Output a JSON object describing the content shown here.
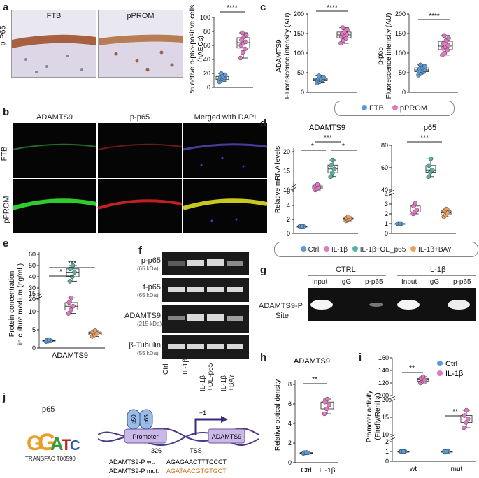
{
  "panels": {
    "a": "a",
    "b": "b",
    "c": "c",
    "d": "d",
    "e": "e",
    "f": "f",
    "g": "g",
    "h": "h",
    "i": "i",
    "j": "j"
  },
  "colors": {
    "ctrl": "#5b9bd5",
    "treat": "#e377c2",
    "oe": "#52b3a0",
    "bay": "#f0a060",
    "ink": "#222222"
  },
  "panel_a": {
    "row_label": "p-P65",
    "img_labels": [
      "FTB",
      "pPROM"
    ],
    "ylabel_1": "% active p-p65-positive cells",
    "ylabel_2": "(hAECs)",
    "sig": "****",
    "ylim": [
      0,
      100
    ],
    "ticks": [
      "0",
      "20",
      "40",
      "60",
      "80",
      "100"
    ]
  },
  "panel_b": {
    "cols": [
      "ADAMTS9",
      "p-p65",
      "Merged with DAPI"
    ],
    "rows": [
      "FTB",
      "pPROM"
    ]
  },
  "panel_c": {
    "left_ylabel_1": "ADAMTS9",
    "left_ylabel_2": "Fluorescence intensity (AU)",
    "right_ylabel_1": "p-p65",
    "right_ylabel_2": "Fluorescence intensity (AU)",
    "sig": "****",
    "ticks": [
      "0",
      "50",
      "100",
      "150",
      "200"
    ],
    "legend": [
      "FTB",
      "pPROM"
    ]
  },
  "panel_d": {
    "title_left": "ADAMTS9",
    "title_right": "p65",
    "ylabel": "Relative mRNA levels",
    "sig_1": "*",
    "sig_2": "***",
    "sig_3": "*",
    "sig_4": "***",
    "ticks_left_low": [
      "0",
      "2",
      "4",
      "6"
    ],
    "ticks_left_high": [
      "10",
      "15",
      "20"
    ],
    "ticks_right_low": [
      "0",
      "1",
      "2",
      "3",
      "4"
    ],
    "ticks_right_high": [
      "40",
      "60",
      "80"
    ],
    "legend": [
      "Ctrl",
      "IL-1β",
      "IL-1β+OE_p65",
      "IL-1β+BAY"
    ]
  },
  "panel_e": {
    "ylabel_1": "Protein concentration",
    "ylabel_2": "in culture medium (ng/mL)",
    "xlabel": "ADAMTS9",
    "sig_1": "*",
    "sig_2": "***",
    "ticks_high": [
      "20",
      "30",
      "40",
      "50",
      "60"
    ],
    "ticks_low": [
      "0",
      "5",
      "10",
      "15"
    ]
  },
  "panel_f": {
    "bands": [
      {
        "name": "p-p65",
        "kda": "(65 kDa)"
      },
      {
        "name": "t-p65",
        "kda": "(65 kDa)"
      },
      {
        "name": "ADAMTS9",
        "kda": "(215 kDa)"
      },
      {
        "name": "β-Tubulin",
        "kda": "(55 kDa)"
      }
    ],
    "lanes": [
      "Ctrl",
      "IL-1β",
      "IL-1β +OE-p65",
      "IL-1β +BAY"
    ]
  },
  "panel_g": {
    "groups": [
      "CTRL",
      "IL-1β"
    ],
    "lanes": [
      "Input",
      "IgG",
      "p-p65",
      "Input",
      "IgG",
      "p-p65"
    ],
    "site_1": "ADAMTS9-P",
    "site_2": "Site"
  },
  "panel_h": {
    "title": "ADAMTS9",
    "ylabel": "Relative optical density",
    "sig": "**",
    "ticks": [
      "0",
      "2",
      "4",
      "6",
      "8"
    ],
    "cats": [
      "Ctrl",
      "IL-1β"
    ]
  },
  "panel_i": {
    "ylabel_1": "Promoter activity",
    "ylabel_2": "(Firefly/Renilla)",
    "sig_1": "**",
    "sig_2": "**",
    "ticks_high": [
      "100",
      "120",
      "140",
      "160"
    ],
    "ticks_mid": [
      "10",
      "15",
      "20"
    ],
    "ticks_low": [
      "0",
      "1",
      "2"
    ],
    "cats": [
      "wt",
      "mut"
    ],
    "legend": [
      "Ctrl",
      "IL-1β"
    ]
  },
  "panel_j": {
    "motif_title": "p65",
    "motif_src": "TRANSFAC T00590",
    "p50": "p50",
    "p65": "p65",
    "promoter": "Promoter",
    "gene": "ADAMTS9",
    "plus1": "+1",
    "pos": "-326",
    "tss": "TSS",
    "wt_label": "ADAMTS9-P wt:",
    "wt_seq": "AGAGAACTTTCCCT",
    "mut_label": "ADAMTS9-P mut:",
    "mut_seq": "AGATAACGTGTGCT"
  },
  "chart_data": [
    {
      "type": "box",
      "panel": "a",
      "categories": [
        "FTB",
        "pPROM"
      ],
      "values": [
        [
          8,
          10,
          11,
          12,
          13,
          14,
          15,
          16,
          18,
          20
        ],
        [
          42,
          50,
          55,
          60,
          63,
          65,
          68,
          72,
          75,
          78
        ]
      ],
      "ylabel": "% active p-p65-positive cells (hAECs)",
      "ylim": [
        0,
        100
      ]
    },
    {
      "type": "box",
      "panel": "c-left",
      "categories": [
        "FTB",
        "pPROM"
      ],
      "values": [
        [
          24,
          27,
          29,
          31,
          32,
          33,
          34,
          36,
          38,
          42
        ],
        [
          125,
          132,
          138,
          142,
          145,
          148,
          150,
          155,
          160,
          165
        ]
      ],
      "ylabel": "ADAMTS9 Fluorescence intensity (AU)",
      "ylim": [
        0,
        200
      ]
    },
    {
      "type": "box",
      "panel": "c-right",
      "categories": [
        "FTB",
        "pPROM"
      ],
      "values": [
        [
          44,
          48,
          52,
          54,
          56,
          58,
          60,
          63,
          66,
          70
        ],
        [
          95,
          100,
          108,
          112,
          116,
          120,
          125,
          132,
          138,
          145
        ]
      ],
      "ylabel": "p-p65 Fluorescence intensity (AU)",
      "ylim": [
        0,
        200
      ]
    },
    {
      "type": "box",
      "panel": "d-left",
      "categories": [
        "Ctrl",
        "IL-1β",
        "IL-1β+OE_p65",
        "IL-1β+BAY"
      ],
      "values": [
        [
          1,
          1,
          1,
          1,
          1
        ],
        [
          6.2,
          6.4,
          6.6,
          6.8,
          7.0
        ],
        [
          13.5,
          14.5,
          15.5,
          16.5,
          17.8
        ],
        [
          1.8,
          2.0,
          2.1,
          2.2,
          2.4
        ]
      ],
      "ylabel": "Relative mRNA levels"
    },
    {
      "type": "box",
      "panel": "d-right",
      "categories": [
        "Ctrl",
        "IL-1β",
        "IL-1β+OE_p65",
        "IL-1β+BAY"
      ],
      "values": [
        [
          1,
          1,
          1,
          1,
          1
        ],
        [
          2.0,
          2.2,
          2.4,
          2.8,
          3.1
        ],
        [
          52,
          56,
          58,
          62,
          68
        ],
        [
          1.7,
          1.9,
          2.1,
          2.3,
          2.5
        ]
      ]
    },
    {
      "type": "box",
      "panel": "e",
      "categories": [
        "Ctrl",
        "IL-1β",
        "IL-1β+BAY"
      ],
      "values": [
        [
          1.8,
          1.9,
          2.0,
          2.1,
          2.3
        ],
        [
          9.5,
          10.5,
          11.5,
          12.5,
          13.8
        ],
        [
          3.2,
          3.6,
          4.0,
          4.4,
          4.8
        ]
      ],
      "ylabel": "Protein concentration in culture medium (ng/mL)"
    },
    {
      "type": "box",
      "panel": "h",
      "categories": [
        "Ctrl",
        "IL-1β"
      ],
      "values": [
        [
          0.95,
          1.0,
          1.0,
          1.02,
          1.05
        ],
        [
          5.0,
          5.5,
          5.9,
          6.2,
          6.5
        ]
      ],
      "ylabel": "Relative optical density",
      "ylim": [
        0,
        8
      ]
    },
    {
      "type": "box",
      "panel": "i",
      "categories": [
        "wt",
        "mut"
      ],
      "series": [
        {
          "name": "Ctrl",
          "values": [
            [
              1,
              1,
              1,
              1,
              1
            ],
            [
              1,
              1,
              1,
              1,
              1
            ]
          ]
        },
        {
          "name": "IL-1β",
          "values": [
            [
              120,
              123,
              125,
              127,
              130
            ],
            [
              12,
              13.5,
              14.5,
              15.5,
              17
            ]
          ]
        }
      ],
      "ylabel": "Promoter activity (Firefly/Renilla)"
    }
  ]
}
